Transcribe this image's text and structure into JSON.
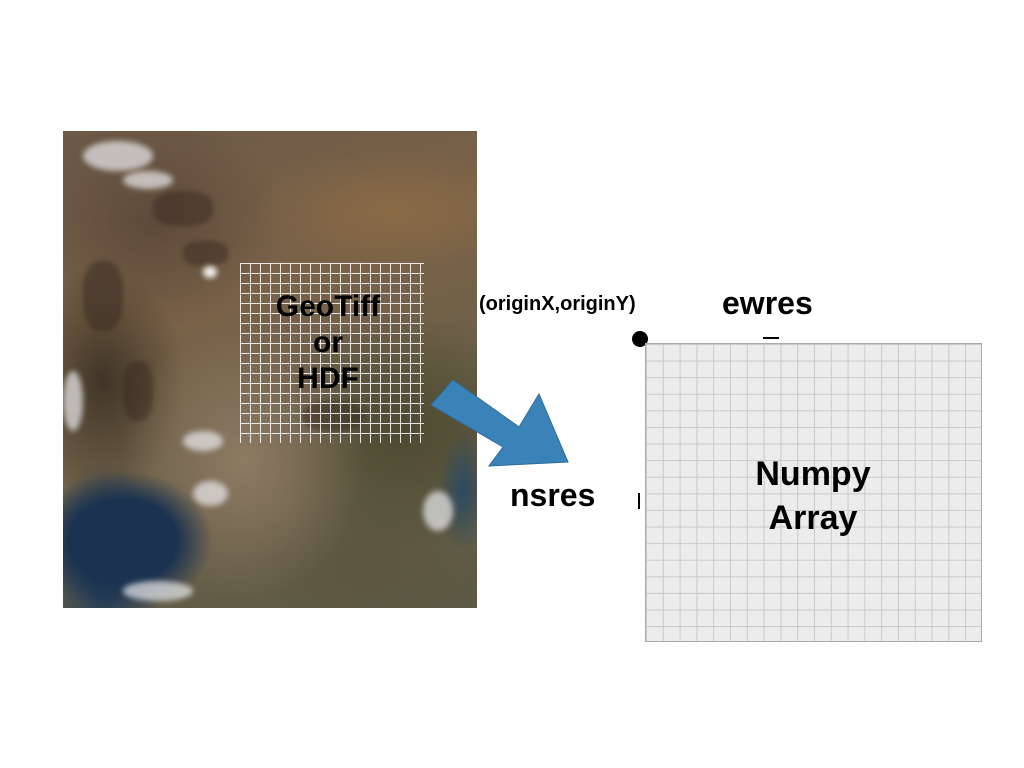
{
  "source": {
    "lines": [
      "GeoTiff",
      "or",
      "HDF"
    ]
  },
  "labels": {
    "origin": "(originX,originY)",
    "ewres": "ewres",
    "nsres": "nsres"
  },
  "target": {
    "lines": [
      "Numpy",
      "Array"
    ]
  },
  "colors": {
    "arrow": "#3a83b8",
    "grid_fill": "#ececec",
    "grid_lines": "#c9c9c9"
  }
}
